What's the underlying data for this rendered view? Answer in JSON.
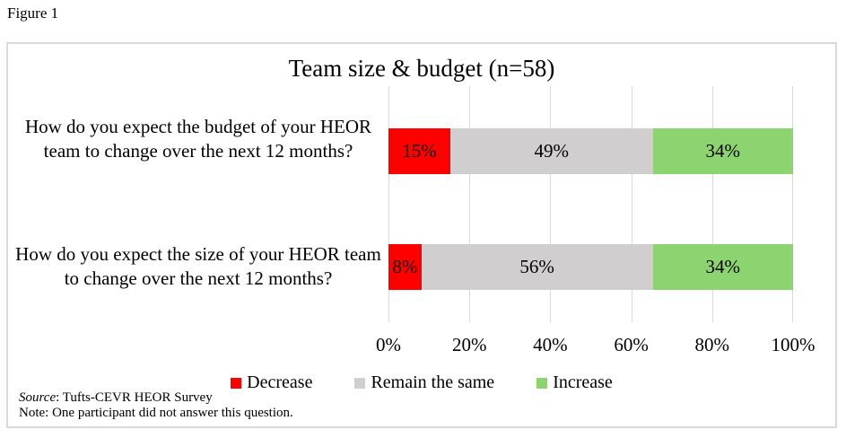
{
  "figure_label": "Figure 1",
  "chart_data": {
    "type": "bar",
    "orientation": "horizontal-stacked",
    "title": "Team size & budget (n=58)",
    "categories": [
      "How do you expect the budget of your HEOR team to change over the next 12 months?",
      "How do you expect the size of your HEOR team to change over the next 12 months?"
    ],
    "series": [
      {
        "name": "Decrease",
        "color": "#FF0000",
        "values": [
          15,
          8
        ]
      },
      {
        "name": "Remain the same",
        "color": "#D0CECE",
        "values": [
          49,
          56
        ]
      },
      {
        "name": "Increase",
        "color": "#8CD46F",
        "values": [
          34,
          34
        ]
      }
    ],
    "value_suffix": "%",
    "x_axis": {
      "ticks": [
        "0%",
        "20%",
        "40%",
        "60%",
        "80%",
        "100%"
      ],
      "min": 0,
      "max": 100
    },
    "legend_position": "bottom",
    "gridlines": true,
    "grid_color": "#D9D9D9"
  },
  "footer": {
    "source_label": "Source",
    "source_text": ": Tufts-CEVR HEOR Survey",
    "note": "Note: One participant did not answer this question."
  }
}
